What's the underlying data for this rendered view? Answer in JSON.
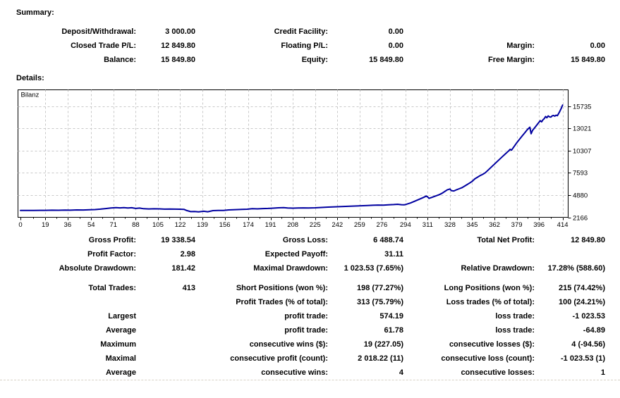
{
  "report": {
    "summary": {
      "heading": "Summary:",
      "rows": [
        [
          [
            "Deposit/Withdrawal:",
            "3 000.00"
          ],
          [
            "Credit Facility:",
            "0.00"
          ],
          [
            "",
            ""
          ]
        ],
        [
          [
            "Closed Trade P/L:",
            "12 849.80"
          ],
          [
            "Floating P/L:",
            "0.00"
          ],
          [
            "Margin:",
            "0.00"
          ]
        ],
        [
          [
            "Balance:",
            "15 849.80"
          ],
          [
            "Equity:",
            "15 849.80"
          ],
          [
            "Free Margin:",
            "15 849.80"
          ]
        ]
      ]
    },
    "details": {
      "heading": "Details:",
      "rows": [
        [
          [
            "Gross Profit:",
            "19 338.54"
          ],
          [
            "Gross Loss:",
            "6 488.74"
          ],
          [
            "Total Net Profit:",
            "12 849.80"
          ]
        ],
        [
          [
            "Profit Factor:",
            "2.98"
          ],
          [
            "Expected Payoff:",
            "31.11"
          ],
          [
            "",
            ""
          ]
        ],
        [
          [
            "Absolute Drawdown:",
            "181.42"
          ],
          [
            "Maximal Drawdown:",
            "1 023.53 (7.65%)"
          ],
          [
            "Relative Drawdown:",
            "17.28% (588.60)"
          ]
        ],
        [
          [
            "Total Trades:",
            "413"
          ],
          [
            "Short Positions (won %):",
            "198 (77.27%)"
          ],
          [
            "Long Positions (won %):",
            "215 (74.42%)"
          ]
        ],
        [
          [
            "",
            ""
          ],
          [
            "Profit Trades (% of total):",
            "313 (75.79%)"
          ],
          [
            "Loss trades (% of total):",
            "100 (24.21%)"
          ]
        ],
        [
          [
            "Largest",
            ""
          ],
          [
            "profit trade:",
            "574.19"
          ],
          [
            "loss trade:",
            "-1 023.53"
          ]
        ],
        [
          [
            "Average",
            ""
          ],
          [
            "profit trade:",
            "61.78"
          ],
          [
            "loss trade:",
            "-64.89"
          ]
        ],
        [
          [
            "Maximum",
            ""
          ],
          [
            "consecutive wins ($):",
            "19 (227.05)"
          ],
          [
            "consecutive losses ($):",
            "4 (-94.56)"
          ]
        ],
        [
          [
            "Maximal",
            ""
          ],
          [
            "consecutive profit (count):",
            "2 018.22 (11)"
          ],
          [
            "consecutive loss (count):",
            "-1 023.53 (1)"
          ]
        ],
        [
          [
            "Average",
            ""
          ],
          [
            "consecutive wins:",
            "4"
          ],
          [
            "consecutive losses:",
            "1"
          ]
        ]
      ]
    }
  },
  "chart_data": {
    "type": "line",
    "title": "Bilanz",
    "xlabel": "",
    "ylabel": "",
    "legend_position": "top-left-inline",
    "grid": "dashed",
    "line_color": "#0000a0",
    "grid_color": "#c8c8c8",
    "x_ticks": [
      0,
      19,
      36,
      54,
      71,
      88,
      105,
      122,
      139,
      156,
      174,
      191,
      208,
      225,
      242,
      259,
      276,
      294,
      311,
      328,
      345,
      362,
      379,
      396,
      414
    ],
    "y_ticks": [
      2166,
      4880,
      7593,
      10307,
      13021,
      15735
    ],
    "ylim": [
      2166,
      15900
    ],
    "xlim": [
      0,
      421
    ],
    "series": [
      {
        "name": "Bilanz",
        "points": [
          [
            0,
            3000
          ],
          [
            5,
            3008
          ],
          [
            10,
            2998
          ],
          [
            15,
            3018
          ],
          [
            19,
            3012
          ],
          [
            24,
            3030
          ],
          [
            29,
            3022
          ],
          [
            34,
            3042
          ],
          [
            38,
            3036
          ],
          [
            43,
            3066
          ],
          [
            48,
            3056
          ],
          [
            53,
            3086
          ],
          [
            57,
            3108
          ],
          [
            61,
            3165
          ],
          [
            65,
            3235
          ],
          [
            69,
            3305
          ],
          [
            73,
            3340
          ],
          [
            76,
            3318
          ],
          [
            79,
            3345
          ],
          [
            82,
            3308
          ],
          [
            85,
            3332
          ],
          [
            88,
            3248
          ],
          [
            91,
            3288
          ],
          [
            94,
            3212
          ],
          [
            98,
            3192
          ],
          [
            102,
            3206
          ],
          [
            106,
            3196
          ],
          [
            110,
            3162
          ],
          [
            114,
            3180
          ],
          [
            118,
            3166
          ],
          [
            122,
            3152
          ],
          [
            125,
            3132
          ],
          [
            127,
            2988
          ],
          [
            130,
            2862
          ],
          [
            133,
            2882
          ],
          [
            136,
            2832
          ],
          [
            140,
            2906
          ],
          [
            143,
            2842
          ],
          [
            147,
            2986
          ],
          [
            151,
            3004
          ],
          [
            155,
            2996
          ],
          [
            159,
            3064
          ],
          [
            164,
            3104
          ],
          [
            169,
            3126
          ],
          [
            173,
            3152
          ],
          [
            177,
            3214
          ],
          [
            181,
            3196
          ],
          [
            185,
            3234
          ],
          [
            189,
            3246
          ],
          [
            193,
            3282
          ],
          [
            197,
            3326
          ],
          [
            201,
            3348
          ],
          [
            204,
            3310
          ],
          [
            208,
            3286
          ],
          [
            212,
            3296
          ],
          [
            216,
            3314
          ],
          [
            220,
            3306
          ],
          [
            225,
            3326
          ],
          [
            230,
            3372
          ],
          [
            235,
            3414
          ],
          [
            240,
            3448
          ],
          [
            245,
            3476
          ],
          [
            250,
            3506
          ],
          [
            255,
            3538
          ],
          [
            260,
            3572
          ],
          [
            265,
            3606
          ],
          [
            269,
            3638
          ],
          [
            273,
            3662
          ],
          [
            277,
            3644
          ],
          [
            281,
            3694
          ],
          [
            285,
            3724
          ],
          [
            288,
            3754
          ],
          [
            291,
            3706
          ],
          [
            293,
            3686
          ],
          [
            295,
            3772
          ],
          [
            298,
            3922
          ],
          [
            301,
            4122
          ],
          [
            304,
            4332
          ],
          [
            307,
            4532
          ],
          [
            309,
            4682
          ],
          [
            310,
            4758
          ],
          [
            311,
            4642
          ],
          [
            312,
            4472
          ],
          [
            314,
            4592
          ],
          [
            316,
            4712
          ],
          [
            318,
            4822
          ],
          [
            320,
            4942
          ],
          [
            322,
            5102
          ],
          [
            324,
            5312
          ],
          [
            326,
            5522
          ],
          [
            328,
            5622
          ],
          [
            329,
            5422
          ],
          [
            331,
            5382
          ],
          [
            333,
            5522
          ],
          [
            335,
            5642
          ],
          [
            337,
            5762
          ],
          [
            339,
            5952
          ],
          [
            341,
            6152
          ],
          [
            343,
            6352
          ],
          [
            345,
            6552
          ],
          [
            347,
            6852
          ],
          [
            349,
            7052
          ],
          [
            351,
            7252
          ],
          [
            353,
            7402
          ],
          [
            355,
            7602
          ],
          [
            357,
            7902
          ],
          [
            359,
            8202
          ],
          [
            361,
            8502
          ],
          [
            363,
            8802
          ],
          [
            365,
            9102
          ],
          [
            367,
            9402
          ],
          [
            369,
            9702
          ],
          [
            371,
            10002
          ],
          [
            373,
            10302
          ],
          [
            374,
            10452
          ],
          [
            375,
            10352
          ],
          [
            377,
            10802
          ],
          [
            379,
            11252
          ],
          [
            381,
            11652
          ],
          [
            383,
            12052
          ],
          [
            385,
            12452
          ],
          [
            387,
            12852
          ],
          [
            389,
            13152
          ],
          [
            390,
            12352
          ],
          [
            391,
            12752
          ],
          [
            393,
            13152
          ],
          [
            395,
            13552
          ],
          [
            397,
            13952
          ],
          [
            398,
            13802
          ],
          [
            399,
            14052
          ],
          [
            400,
            14202
          ],
          [
            401,
            14452
          ],
          [
            402,
            14302
          ],
          [
            403,
            14522
          ],
          [
            404,
            14422
          ],
          [
            405,
            14382
          ],
          [
            406,
            14522
          ],
          [
            407,
            14582
          ],
          [
            408,
            14502
          ],
          [
            409,
            14622
          ],
          [
            410,
            14562
          ],
          [
            411,
            14822
          ],
          [
            412,
            15122
          ],
          [
            413,
            15452
          ],
          [
            414,
            15850
          ]
        ]
      }
    ]
  }
}
